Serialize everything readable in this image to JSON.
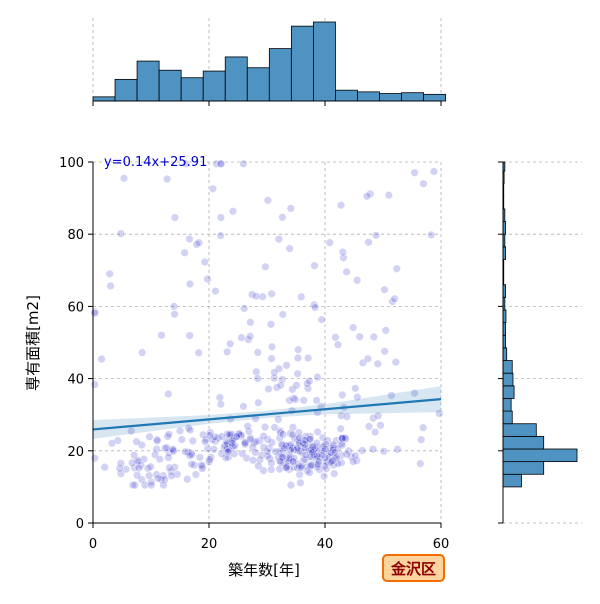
{
  "chart_data": {
    "type": "scatter",
    "xlabel": "築年数[年]",
    "ylabel": "専有面積[m2]",
    "xlim": [
      0,
      60
    ],
    "ylim": [
      0,
      100
    ],
    "xticks": [
      "0",
      "20",
      "40",
      "60"
    ],
    "yticks": [
      "0",
      "20",
      "40",
      "60",
      "80",
      "100"
    ],
    "grid": true,
    "badge": "金沢区",
    "regression": {
      "label": "y=0.14x+25.91",
      "slope": 0.14,
      "intercept": 25.91,
      "ci_half_width_at_x": [
        [
          0,
          2.6
        ],
        [
          20,
          1.2
        ],
        [
          30,
          1.0
        ],
        [
          40,
          1.4
        ],
        [
          60,
          3.6
        ]
      ]
    },
    "marginal_x": {
      "type": "histogram",
      "bin_edges": [
        0,
        3.8,
        7.6,
        11.4,
        15.2,
        19.0,
        22.8,
        26.6,
        30.4,
        34.2,
        38.0,
        41.8,
        45.6,
        49.4,
        53.2,
        57.0,
        60.8
      ],
      "counts": [
        5,
        26,
        48,
        37,
        28,
        36,
        53,
        40,
        63,
        90,
        95,
        13,
        11,
        9,
        10,
        8
      ]
    },
    "marginal_y": {
      "type": "histogram",
      "bin_edges": [
        10,
        13.5,
        17,
        20.5,
        24,
        27.5,
        31,
        34.5,
        38,
        41.5,
        45,
        48.5,
        52,
        55.5,
        59,
        62.5,
        66,
        69.5,
        73,
        76.5,
        80,
        83.5,
        87,
        90.5,
        94,
        97.5,
        101
      ],
      "counts": [
        50,
        110,
        200,
        110,
        90,
        25,
        22,
        30,
        27,
        25,
        10,
        7,
        7,
        8,
        5,
        7,
        2,
        2,
        7,
        5,
        7,
        5,
        2,
        2,
        3,
        5
      ]
    },
    "colors": {
      "points": "#3333cc",
      "regression_line": "#1f77b4",
      "ci_band": "#1f77b4",
      "histogram_fill": "#4f93c3",
      "histogram_edge": "#000000",
      "grid": "#b0b0b0",
      "badge_fill": "#fdd49e",
      "badge_border": "#f46d00",
      "badge_text": "#8b0000"
    },
    "point_groups": [
      {
        "center": [
          37,
          19
        ],
        "spread": [
          4,
          3
        ],
        "n": 150
      },
      {
        "center": [
          24,
          22
        ],
        "spread": [
          5,
          3
        ],
        "n": 80
      },
      {
        "center": [
          12,
          17
        ],
        "spread": [
          5,
          4
        ],
        "n": 65
      },
      {
        "center": [
          34,
          34
        ],
        "spread": [
          5,
          6
        ],
        "n": 40
      },
      {
        "center": [
          30,
          60
        ],
        "spread": [
          18,
          24
        ],
        "n": 100
      },
      {
        "center": [
          50,
          25
        ],
        "spread": [
          7,
          8
        ],
        "n": 25
      }
    ]
  }
}
